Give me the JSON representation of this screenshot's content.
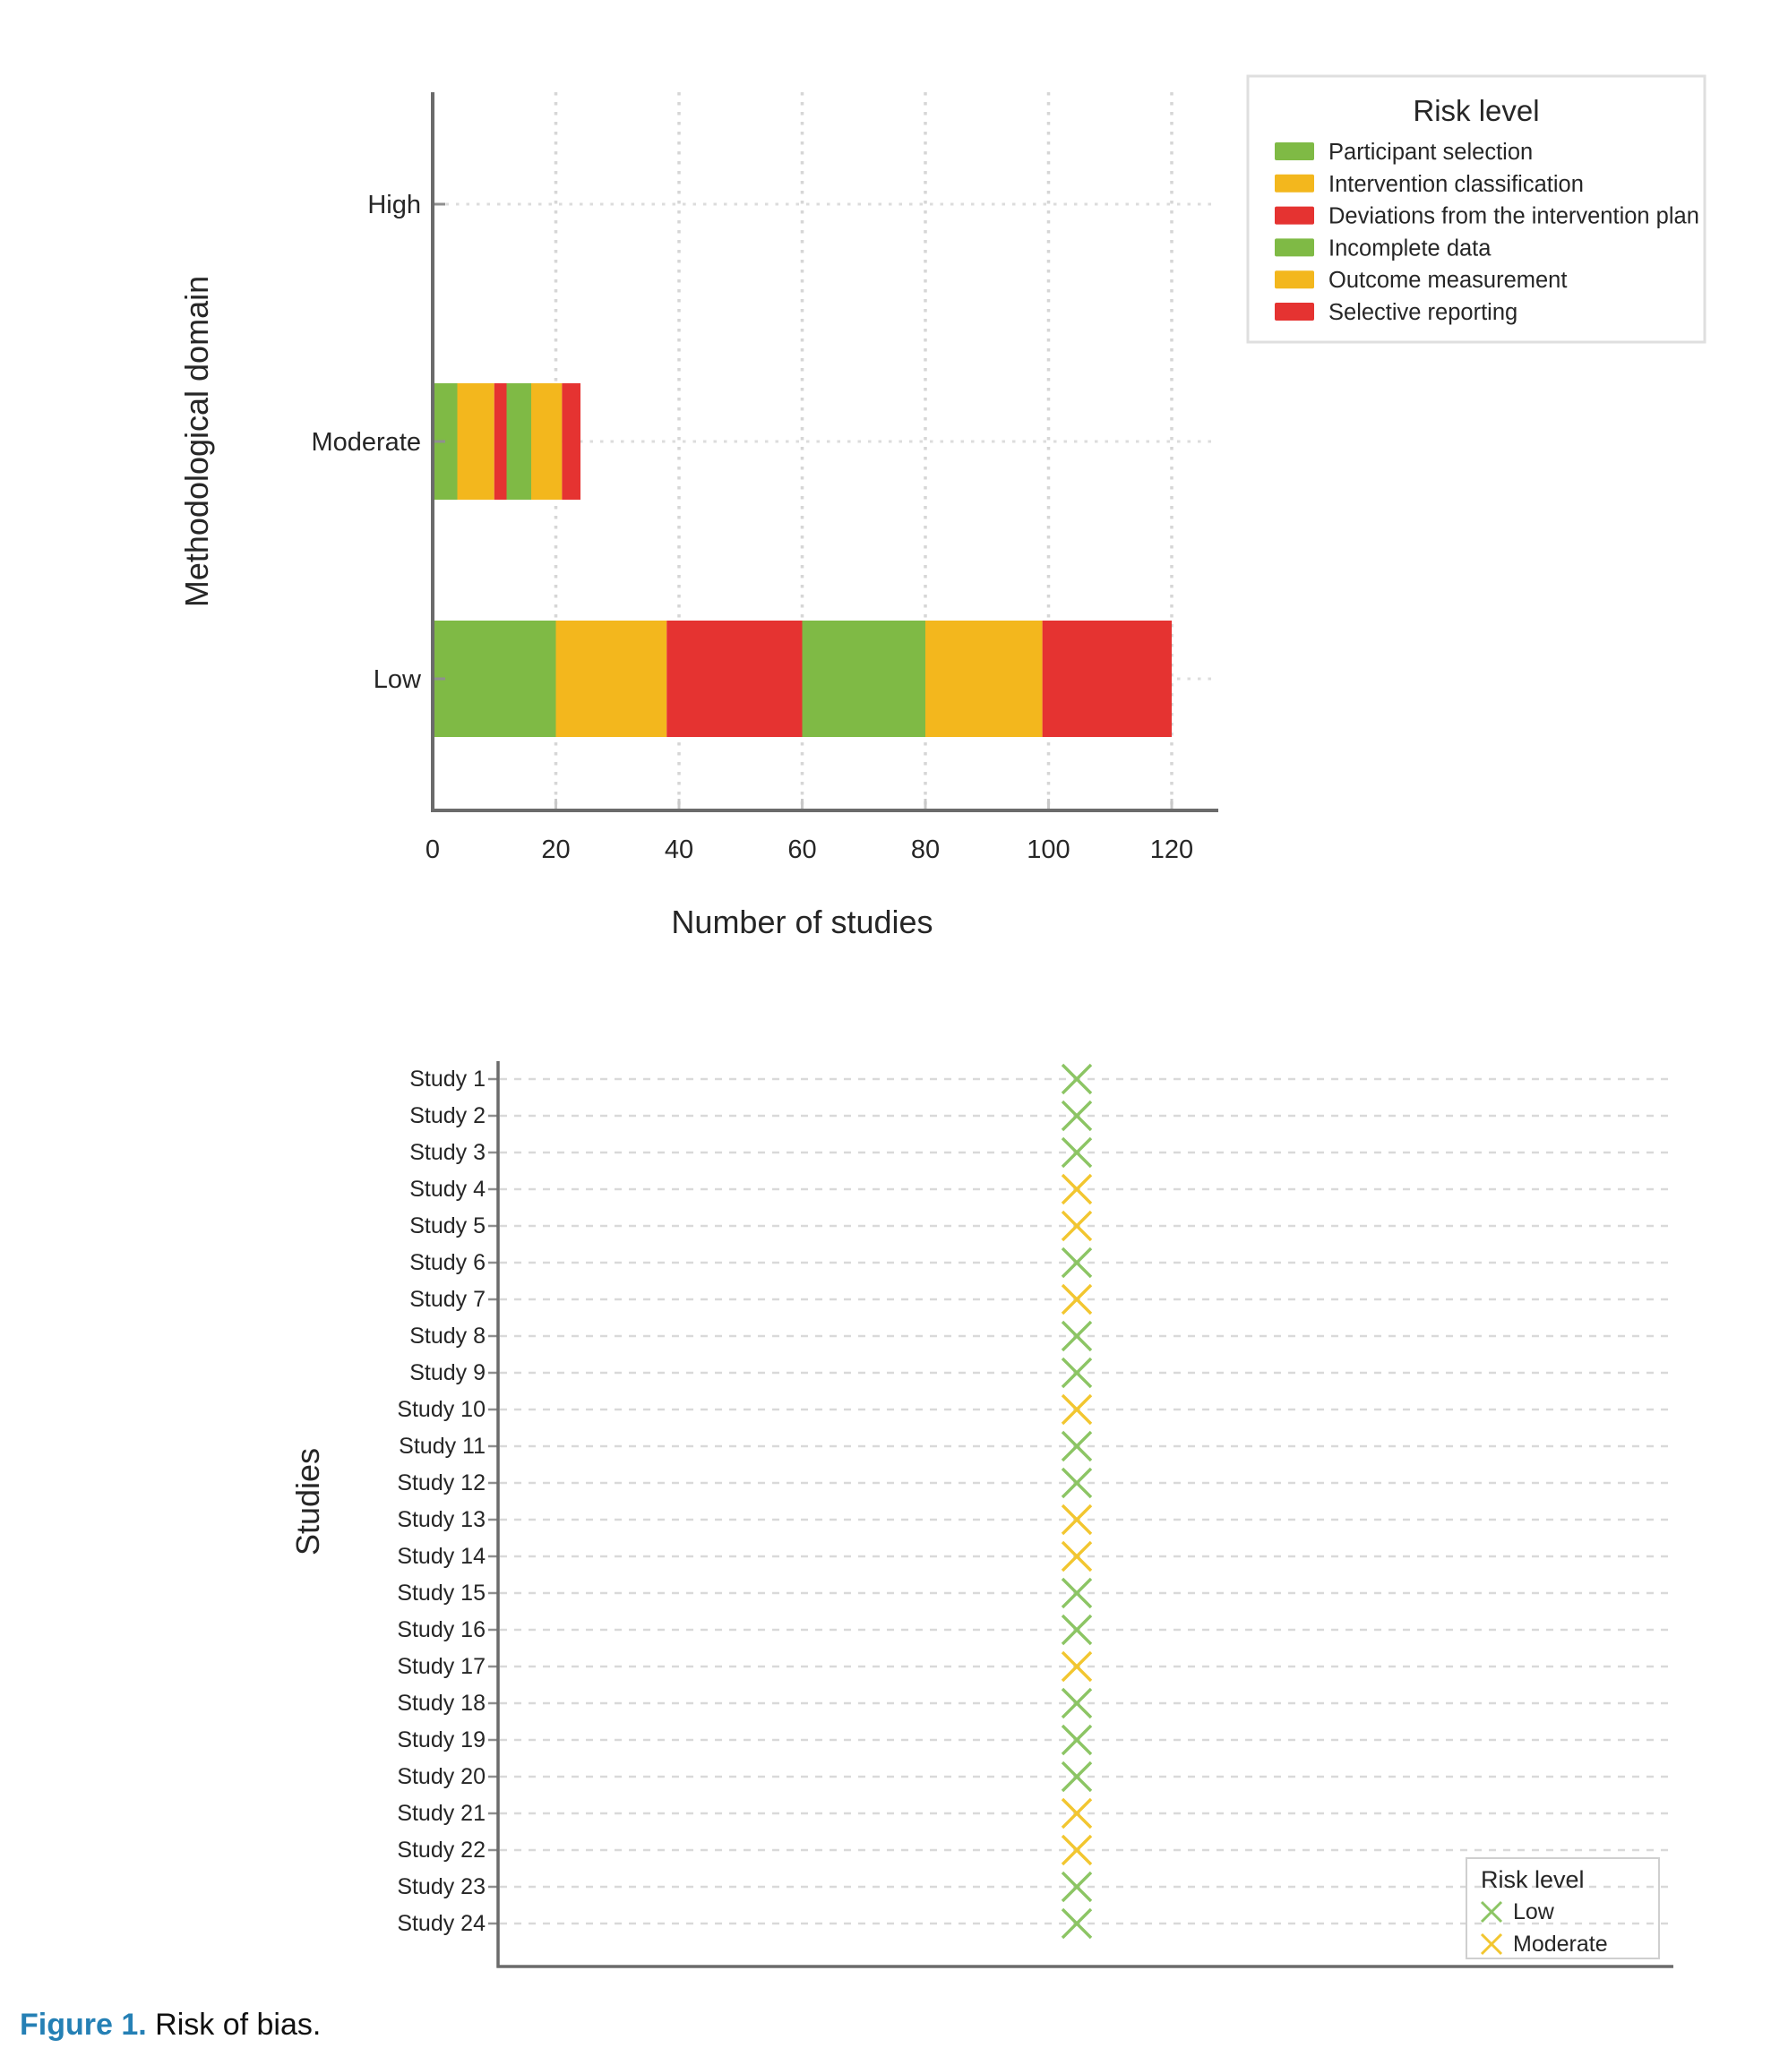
{
  "caption": {
    "label": "Figure 1.",
    "text": " Risk of bias.",
    "label_color": "#2580b5"
  },
  "colors": {
    "bar_green": "#7fba45",
    "bar_orange": "#f3b71d",
    "bar_red": "#e53331",
    "marker_green": "#8cc564",
    "marker_yellow": "#f2c630",
    "axis_gray": "#6b6b6b",
    "grid_gray": "#d6d6d6",
    "caption_blue": "#2580b5"
  },
  "chart_data": [
    {
      "id": "risk-by-domain",
      "type": "bar",
      "stacked": true,
      "orientation": "horizontal",
      "legend_title": "Risk level",
      "legend_position": "top-right",
      "xlabel": "Number of studies",
      "ylabel": "Methodological domain",
      "categories": [
        "High",
        "Moderate",
        "Low"
      ],
      "xticks": [
        0,
        20,
        40,
        60,
        80,
        100,
        120
      ],
      "xlim": [
        0,
        127
      ],
      "grid": true,
      "series": [
        {
          "name": "Participant selection",
          "color": "#7fba45",
          "values": [
            0,
            4,
            20
          ]
        },
        {
          "name": "Intervention classification",
          "color": "#f3b71d",
          "values": [
            0,
            6,
            18
          ]
        },
        {
          "name": "Deviations from the intervention plan",
          "color": "#e53331",
          "values": [
            0,
            2,
            22
          ]
        },
        {
          "name": "Incomplete data",
          "color": "#7fba45",
          "values": [
            0,
            4,
            20
          ]
        },
        {
          "name": "Outcome measurement",
          "color": "#f3b71d",
          "values": [
            0,
            5,
            19
          ]
        },
        {
          "name": "Selective reporting",
          "color": "#e53331",
          "values": [
            0,
            3,
            21
          ]
        }
      ]
    },
    {
      "id": "risk-by-study",
      "type": "scatter",
      "marker": "x",
      "xlabel": "",
      "ylabel": "Studies",
      "legend_title": "Risk level",
      "legend_position": "bottom-right",
      "grid": true,
      "risk_colors": {
        "Low": "#8cc564",
        "Moderate": "#f2c630"
      },
      "legend_items": [
        {
          "label": "Low",
          "risk": "Low"
        },
        {
          "label": "Moderate",
          "risk": "Moderate"
        }
      ],
      "points": [
        {
          "label": "Study 1",
          "risk": "Low"
        },
        {
          "label": "Study 2",
          "risk": "Low"
        },
        {
          "label": "Study 3",
          "risk": "Low"
        },
        {
          "label": "Study 4",
          "risk": "Moderate"
        },
        {
          "label": "Study 5",
          "risk": "Moderate"
        },
        {
          "label": "Study 6",
          "risk": "Low"
        },
        {
          "label": "Study 7",
          "risk": "Moderate"
        },
        {
          "label": "Study 8",
          "risk": "Low"
        },
        {
          "label": "Study 9",
          "risk": "Low"
        },
        {
          "label": "Study 10",
          "risk": "Moderate"
        },
        {
          "label": "Study 11",
          "risk": "Low"
        },
        {
          "label": "Study 12",
          "risk": "Low"
        },
        {
          "label": "Study 13",
          "risk": "Moderate"
        },
        {
          "label": "Study 14",
          "risk": "Moderate"
        },
        {
          "label": "Study 15",
          "risk": "Low"
        },
        {
          "label": "Study 16",
          "risk": "Low"
        },
        {
          "label": "Study 17",
          "risk": "Moderate"
        },
        {
          "label": "Study 18",
          "risk": "Low"
        },
        {
          "label": "Study 19",
          "risk": "Low"
        },
        {
          "label": "Study 20",
          "risk": "Low"
        },
        {
          "label": "Study 21",
          "risk": "Moderate"
        },
        {
          "label": "Study 22",
          "risk": "Moderate"
        },
        {
          "label": "Study 23",
          "risk": "Low"
        },
        {
          "label": "Study 24",
          "risk": "Low"
        }
      ]
    }
  ]
}
